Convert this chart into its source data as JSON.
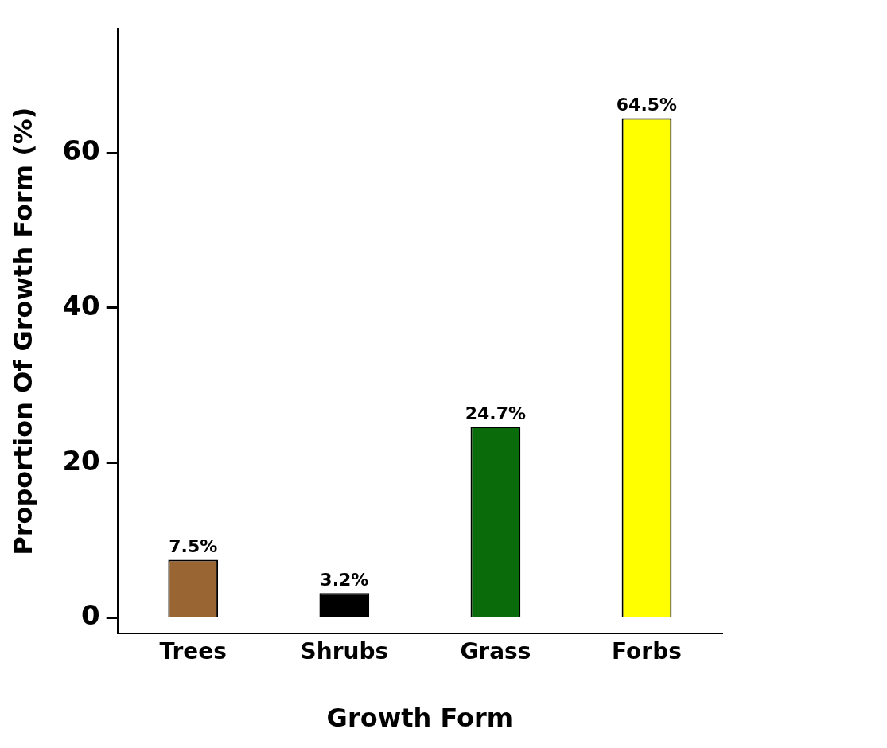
{
  "chart_data": {
    "type": "bar",
    "xlabel": "Growth Form",
    "ylabel": "Proportion Of Growth Form (%)",
    "categories": [
      "Trees",
      "Shrubs",
      "Grass",
      "Forbs"
    ],
    "values": [
      7.5,
      3.2,
      24.7,
      64.5
    ],
    "colors": [
      "#996633",
      "#000000",
      "#0a6b0a",
      "#ffff00"
    ],
    "value_labels": [
      "7.5%",
      "3.2%",
      "24.7%",
      "64.5%"
    ],
    "ylim": [
      -2,
      76
    ],
    "yticks": [
      0,
      20,
      40,
      60
    ],
    "grid": false,
    "legend": false
  }
}
